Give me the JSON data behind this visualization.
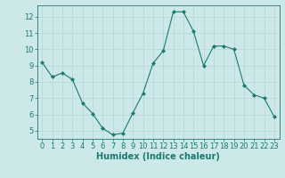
{
  "x": [
    0,
    1,
    2,
    3,
    4,
    5,
    6,
    7,
    8,
    9,
    10,
    11,
    12,
    13,
    14,
    15,
    16,
    17,
    18,
    19,
    20,
    21,
    22,
    23
  ],
  "y": [
    9.2,
    8.3,
    8.55,
    8.15,
    6.7,
    6.05,
    5.15,
    4.75,
    4.85,
    6.1,
    7.3,
    9.15,
    9.9,
    12.3,
    12.3,
    11.1,
    9.0,
    10.2,
    10.2,
    10.0,
    7.8,
    7.2,
    7.0,
    5.85
  ],
  "line_color": "#1a7a6e",
  "marker": "D",
  "marker_size": 2,
  "bg_color": "#cde8e8",
  "grid_color": "#b8d4d4",
  "xlabel": "Humidex (Indice chaleur)",
  "xlabel_fontsize": 7,
  "tick_fontsize": 6,
  "ylim": [
    4.5,
    12.7
  ],
  "xlim": [
    -0.5,
    23.5
  ],
  "yticks": [
    5,
    6,
    7,
    8,
    9,
    10,
    11,
    12
  ],
  "xticks": [
    0,
    1,
    2,
    3,
    4,
    5,
    6,
    7,
    8,
    9,
    10,
    11,
    12,
    13,
    14,
    15,
    16,
    17,
    18,
    19,
    20,
    21,
    22,
    23
  ]
}
